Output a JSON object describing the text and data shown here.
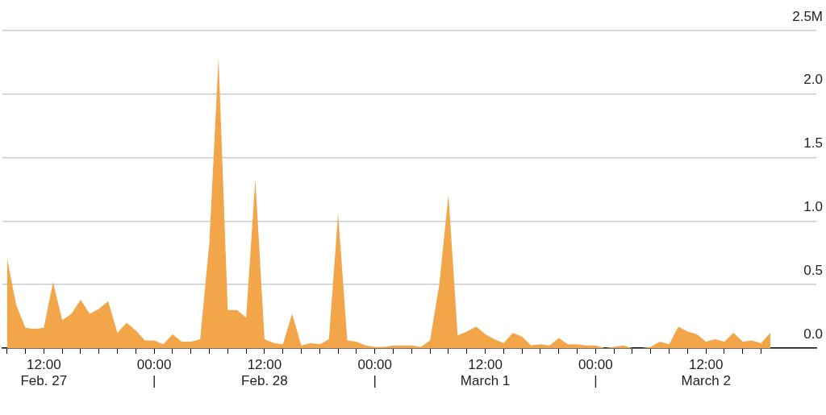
{
  "chart_data": {
    "type": "area",
    "xlim": [
      "--02-27T07:30",
      "--03-03T00:00"
    ],
    "ylim": [
      0,
      2.5
    ],
    "yticks": [
      {
        "value": 0,
        "label": "0.0"
      },
      0.5,
      {
        "value": 1,
        "label": "1.0"
      },
      1.5,
      {
        "value": 2,
        "label": "2.0"
      },
      {
        "value": 2.5,
        "label": "2.5M"
      }
    ],
    "xticks": [
      {
        "value": "--02-27T08:00",
        "label": null
      },
      {
        "value": "--02-27T10:00",
        "label": null
      },
      {
        "value": "--02-27T12:00",
        "label": "12:00\nFeb. 27"
      },
      {
        "value": "--02-27T14:00",
        "label": null
      },
      {
        "value": "--02-27T16:00",
        "label": null
      },
      {
        "value": "--02-27T18:00",
        "label": null
      },
      {
        "value": "--02-27T20:00",
        "label": null
      },
      {
        "value": "--02-27T22:00",
        "label": null
      },
      {
        "value": "--02-28T00:00",
        "label": "00:00\n|"
      },
      {
        "value": "--02-28T02:00",
        "label": null
      },
      {
        "value": "--02-28T04:00",
        "label": null
      },
      {
        "value": "--02-28T06:00",
        "label": null
      },
      {
        "value": "--02-28T08:00",
        "label": null
      },
      {
        "value": "--02-28T10:00",
        "label": null
      },
      {
        "value": "--02-28T12:00",
        "label": "12:00\nFeb. 28"
      },
      {
        "value": "--02-28T14:00",
        "label": null
      },
      {
        "value": "--02-28T16:00",
        "label": null
      },
      {
        "value": "--02-28T18:00",
        "label": null
      },
      {
        "value": "--02-28T20:00",
        "label": null
      },
      {
        "value": "--02-28T22:00",
        "label": null
      },
      {
        "value": "--03-01T00:00",
        "label": "00:00\n|"
      },
      {
        "value": "--03-01T02:00",
        "label": null
      },
      {
        "value": "--03-01T04:00",
        "label": null
      },
      {
        "value": "--03-01T06:00",
        "label": null
      },
      {
        "value": "--03-01T08:00",
        "label": null
      },
      {
        "value": "--03-01T10:00",
        "label": null
      },
      {
        "value": "--03-01T12:00",
        "label": "12:00\nMarch 1"
      },
      {
        "value": "--03-01T14:00",
        "label": null
      },
      {
        "value": "--03-01T16:00",
        "label": null
      },
      {
        "value": "--03-01T18:00",
        "label": null
      },
      {
        "value": "--03-01T20:00",
        "label": null
      },
      {
        "value": "--03-01T22:00",
        "label": null
      },
      {
        "value": "--03-02T00:00",
        "label": "00:00\n|"
      },
      {
        "value": "--03-02T02:00",
        "label": null
      },
      {
        "value": "--03-02T04:00",
        "label": null
      },
      {
        "value": "--03-02T06:00",
        "label": null
      },
      {
        "value": "--03-02T08:00",
        "label": null
      },
      {
        "value": "--03-02T10:00",
        "label": null
      },
      {
        "value": "--03-02T12:00",
        "label": "12:00\nMarch 2"
      },
      {
        "value": "--03-02T14:00",
        "label": null
      },
      {
        "value": "--03-02T16:00",
        "label": null
      },
      {
        "value": "--03-02T18:00",
        "label": null
      }
    ],
    "grid": "y",
    "x": [
      "--02-27T08:00",
      "--02-27T09:00",
      "--02-27T10:00",
      "--02-27T11:00",
      "--02-27T12:00",
      "--02-27T13:00",
      "--02-27T14:00",
      "--02-27T15:00",
      "--02-27T16:00",
      "--02-27T17:00",
      "--02-27T18:00",
      "--02-27T19:00",
      "--02-27T20:00",
      "--02-27T21:00",
      "--02-27T22:00",
      "--02-27T23:00",
      "--02-28T00:00",
      "--02-28T01:00",
      "--02-28T02:00",
      "--02-28T03:00",
      "--02-28T04:00",
      "--02-28T05:00",
      "--02-28T06:00",
      "--02-28T07:00",
      "--02-28T08:00",
      "--02-28T09:00",
      "--02-28T10:00",
      "--02-28T11:00",
      "--02-28T12:00",
      "--02-28T13:00",
      "--02-28T14:00",
      "--02-28T15:00",
      "--02-28T16:00",
      "--02-28T17:00",
      "--02-28T18:00",
      "--02-28T19:00",
      "--02-28T20:00",
      "--02-28T21:00",
      "--02-28T22:00",
      "--02-28T23:00",
      "--03-01T00:00",
      "--03-01T01:00",
      "--03-01T02:00",
      "--03-01T03:00",
      "--03-01T04:00",
      "--03-01T05:00",
      "--03-01T06:00",
      "--03-01T07:00",
      "--03-01T08:00",
      "--03-01T09:00",
      "--03-01T10:00",
      "--03-01T11:00",
      "--03-01T12:00",
      "--03-01T13:00",
      "--03-01T14:00",
      "--03-01T15:00",
      "--03-01T16:00",
      "--03-01T17:00",
      "--03-01T18:00",
      "--03-01T19:00",
      "--03-01T20:00",
      "--03-01T21:00",
      "--03-01T22:00",
      "--03-01T23:00",
      "--03-02T00:00",
      "--03-02T01:00",
      "--03-02T02:00",
      "--03-02T03:00",
      "--03-02T04:00",
      "--03-02T05:00",
      "--03-02T06:00",
      "--03-02T07:00",
      "--03-02T08:00",
      "--03-02T09:00",
      "--03-02T10:00",
      "--03-02T11:00",
      "--03-02T12:00",
      "--03-02T13:00",
      "--03-02T14:00",
      "--03-02T15:00",
      "--03-02T16:00",
      "--03-02T17:00",
      "--03-02T18:00",
      "--03-02T19:00"
    ],
    "series": [
      {
        "color": "#f2a649",
        "values": [
          0.71,
          0.34,
          0.16,
          0.15,
          0.16,
          0.52,
          0.22,
          0.27,
          0.38,
          0.27,
          0.31,
          0.37,
          0.12,
          0.2,
          0.14,
          0.06,
          0.06,
          0.03,
          0.11,
          0.05,
          0.05,
          0.07,
          0.83,
          2.29,
          0.3,
          0.3,
          0.24,
          1.33,
          0.07,
          0.04,
          0.03,
          0.27,
          0.02,
          0.04,
          0.03,
          0.07,
          1.06,
          0.06,
          0.05,
          0.02,
          0.01,
          0.01,
          0.02,
          0.02,
          0.02,
          0.01,
          0.06,
          0.5,
          1.21,
          0.1,
          0.13,
          0.17,
          0.11,
          0.07,
          0.04,
          0.12,
          0.09,
          0.02,
          0.03,
          0.02,
          0.08,
          0.03,
          0.03,
          0.02,
          0.02,
          0,
          0.01,
          0.02,
          0,
          0,
          0.01,
          0.05,
          0.03,
          0.17,
          0.13,
          0.11,
          0.05,
          0.07,
          0.05,
          0.12,
          0.05,
          0.06,
          0.04,
          0.12
        ]
      }
    ]
  }
}
